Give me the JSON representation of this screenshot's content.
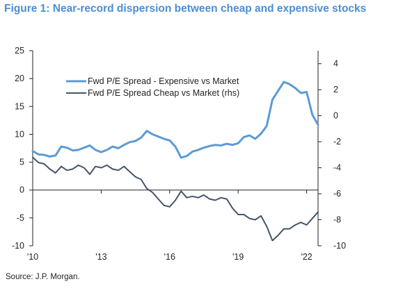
{
  "figure": {
    "title": "Figure 1: Near-record dispersion between cheap and expensive stocks",
    "source": "Source: J.P. Morgan."
  },
  "chart_data": {
    "type": "line",
    "title": "Figure 1: Near-record dispersion between cheap and expensive stocks",
    "xlabel": "",
    "ylabel": "",
    "y2label": "",
    "x_ticks": [
      {
        "label": "'10",
        "value": 2010.0
      },
      {
        "label": "'13",
        "value": 2013.0
      },
      {
        "label": "'16",
        "value": 2016.0
      },
      {
        "label": "'19",
        "value": 2019.0
      },
      {
        "label": "'22",
        "value": 2022.0
      }
    ],
    "xlim": [
      2010.0,
      2022.5
    ],
    "ylim_left": [
      -10,
      25
    ],
    "yticks_left": [
      -10,
      -5,
      0,
      5,
      10,
      15,
      20,
      25
    ],
    "ylim_right": [
      -10,
      5
    ],
    "yticks_right": [
      -10,
      -8,
      -6,
      -4,
      -2,
      0,
      2,
      4
    ],
    "legend_position": "top-center",
    "grid": false,
    "series": [
      {
        "name": "Fwd P/E Spread - Expensive vs Market",
        "axis": "left",
        "color": "#5b9bd5",
        "x": [
          2010.0,
          2010.25,
          2010.5,
          2010.75,
          2011.0,
          2011.25,
          2011.5,
          2011.75,
          2012.0,
          2012.25,
          2012.5,
          2012.75,
          2013.0,
          2013.25,
          2013.5,
          2013.75,
          2014.0,
          2014.25,
          2014.5,
          2014.75,
          2015.0,
          2015.25,
          2015.5,
          2015.75,
          2016.0,
          2016.25,
          2016.5,
          2016.75,
          2017.0,
          2017.25,
          2017.5,
          2017.75,
          2018.0,
          2018.25,
          2018.5,
          2018.75,
          2019.0,
          2019.25,
          2019.5,
          2019.75,
          2020.0,
          2020.25,
          2020.5,
          2020.75,
          2021.0,
          2021.25,
          2021.5,
          2021.75,
          2022.0,
          2022.25,
          2022.5
        ],
        "y": [
          7.0,
          6.4,
          6.3,
          6.0,
          6.2,
          7.8,
          7.6,
          7.1,
          7.2,
          7.6,
          8.0,
          7.2,
          6.8,
          7.2,
          7.8,
          7.5,
          8.1,
          8.6,
          8.8,
          9.4,
          10.6,
          10.0,
          9.6,
          9.2,
          8.9,
          7.8,
          5.8,
          6.1,
          6.9,
          7.2,
          7.6,
          7.9,
          8.1,
          8.0,
          8.3,
          8.1,
          8.4,
          9.5,
          9.8,
          9.2,
          10.1,
          11.5,
          16.2,
          17.8,
          19.4,
          19.0,
          18.3,
          17.4,
          17.6,
          13.5,
          11.7
        ]
      },
      {
        "name": "Fwd P/E Spread Cheap vs Market (rhs)",
        "axis": "right",
        "color": "#44546a",
        "x": [
          2010.0,
          2010.25,
          2010.5,
          2010.75,
          2011.0,
          2011.25,
          2011.5,
          2011.75,
          2012.0,
          2012.25,
          2012.5,
          2012.75,
          2013.0,
          2013.25,
          2013.5,
          2013.75,
          2014.0,
          2014.25,
          2014.5,
          2014.75,
          2015.0,
          2015.25,
          2015.5,
          2015.75,
          2016.0,
          2016.25,
          2016.5,
          2016.75,
          2017.0,
          2017.25,
          2017.5,
          2017.75,
          2018.0,
          2018.25,
          2018.5,
          2018.75,
          2019.0,
          2019.25,
          2019.5,
          2019.75,
          2020.0,
          2020.25,
          2020.5,
          2020.75,
          2021.0,
          2021.25,
          2021.5,
          2021.75,
          2022.0,
          2022.25,
          2022.5
        ],
        "y": [
          -3.2,
          -3.6,
          -3.7,
          -4.1,
          -4.4,
          -3.9,
          -4.2,
          -4.1,
          -3.8,
          -4.0,
          -4.5,
          -3.9,
          -4.0,
          -3.8,
          -4.1,
          -4.2,
          -3.9,
          -4.3,
          -4.7,
          -4.9,
          -5.6,
          -5.9,
          -6.4,
          -6.9,
          -7.0,
          -6.5,
          -5.8,
          -6.3,
          -6.2,
          -6.3,
          -6.1,
          -6.4,
          -6.5,
          -6.3,
          -6.4,
          -7.1,
          -7.6,
          -7.6,
          -7.9,
          -8.0,
          -7.7,
          -8.5,
          -9.6,
          -9.2,
          -8.7,
          -8.7,
          -8.4,
          -8.2,
          -8.4,
          -7.9,
          -7.4
        ]
      }
    ]
  }
}
